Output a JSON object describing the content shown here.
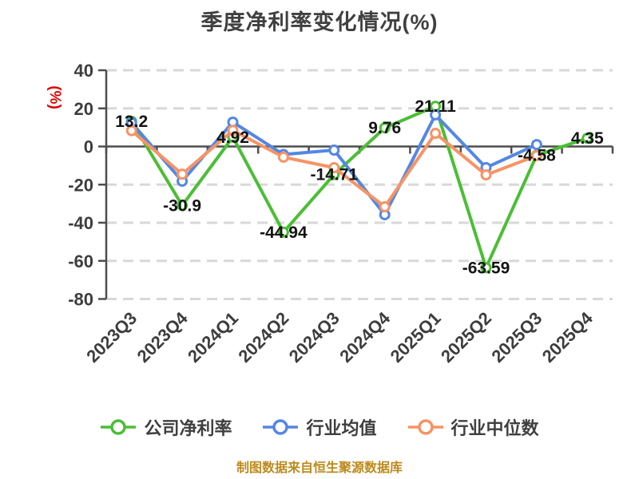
{
  "page": {
    "background": "#ffffff"
  },
  "header": {
    "title": "季度净利率变化情况(%)"
  },
  "footer": {
    "note": "制图数据来自恒生聚源数据库",
    "color": "#bd8a1e"
  },
  "chart_data": {
    "type": "line",
    "title": "季度净利率变化情况(%)",
    "xlabel": "",
    "ylabel": "(%)",
    "ylabel_color": "#dd0000",
    "ylim": [
      -80,
      40
    ],
    "y_ticks": [
      40,
      20,
      0,
      -20,
      -40,
      -60,
      -80
    ],
    "grid": "horizontal-dashed",
    "grid_color": "#d8d8d8",
    "axis_color": "#4d4d4d",
    "tick_label_color": "#3d3d3d",
    "value_label_color": "#141414",
    "legend_position": "bottom",
    "categories": [
      "2023Q3",
      "2023Q4",
      "2024Q1",
      "2024Q2",
      "2024Q3",
      "2024Q4",
      "2025Q1",
      "2025Q2",
      "2025Q3",
      "2025Q4"
    ],
    "series": [
      {
        "key": "company-net-margin",
        "name": "公司净利率",
        "color": "#4bbe35",
        "show_value_labels": true,
        "values": [
          13.2,
          -30.9,
          4.92,
          -44.94,
          -14.71,
          9.76,
          21.11,
          -63.59,
          -4.58,
          4.35
        ]
      },
      {
        "key": "industry-average",
        "name": "行业均值",
        "color": "#5387e4",
        "show_value_labels": false,
        "values": [
          12.5,
          -18.2,
          12.8,
          -4.2,
          -1.9,
          -35.8,
          16.6,
          -11.1,
          1.0,
          null
        ]
      },
      {
        "key": "industry-median",
        "name": "行业中位数",
        "color": "#f79365",
        "show_value_labels": false,
        "values": [
          8.3,
          -14.5,
          8.5,
          -5.6,
          -11.1,
          -31.6,
          6.9,
          -14.9,
          -4.8,
          null
        ]
      }
    ]
  }
}
